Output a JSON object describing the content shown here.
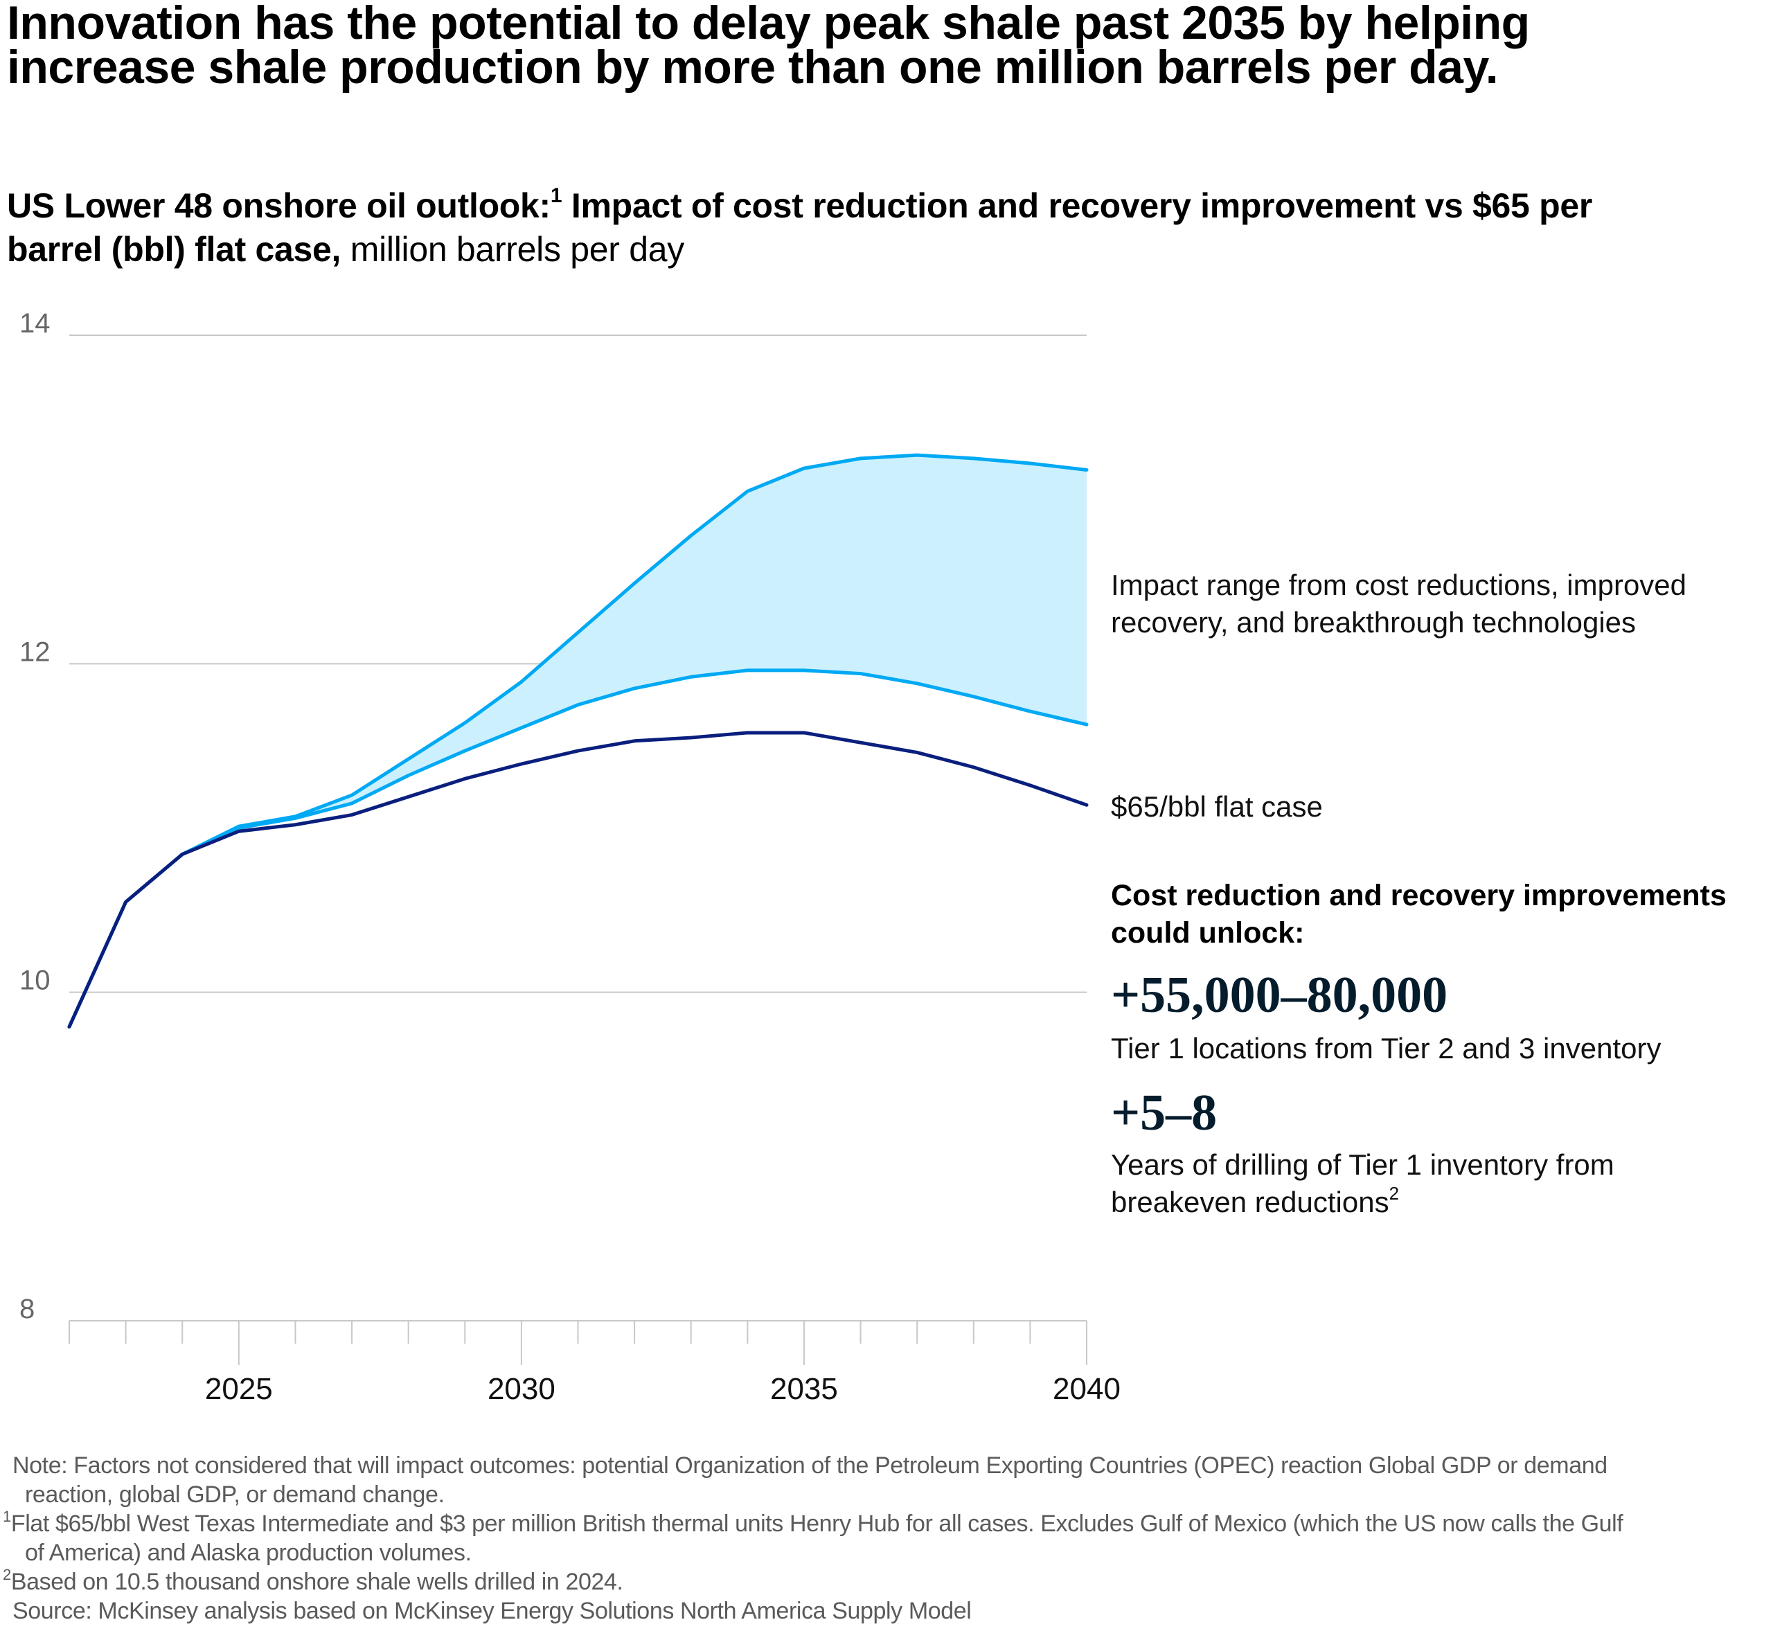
{
  "title": {
    "line1": "Innovation has the potential to delay peak shale past 2035 by helping",
    "line2": "increase shale production by more than one million barrels per day."
  },
  "subtitle": {
    "bold_part1": "US Lower 48 onshore oil outlook:",
    "footnote_ref": "1",
    "bold_part2": " Impact of cost reduction and recovery improvement vs $65 per",
    "bold_part3": "barrel (bbl) flat case,",
    "unit": " million barrels per day"
  },
  "annotations": {
    "impact_range_line1": "Impact range from cost reductions, improved",
    "impact_range_line2": "recovery, and breakthrough technologies",
    "flat_case_label": "$65/bbl flat case",
    "unlock_heading_line1": "Cost reduction and recovery improvements",
    "unlock_heading_line2": "could unlock:",
    "stat1_value": "+55,000–80,000",
    "stat1_desc": "Tier 1 locations from Tier 2 and 3 inventory",
    "stat2_value": "+5–8",
    "stat2_desc_line1": "Years of drilling of Tier 1 inventory from",
    "stat2_desc_line2": "breakeven reductions",
    "stat2_footnote_ref": "2"
  },
  "footnotes": {
    "note_line1": "Note: Factors not considered that will impact outcomes: potential Organization of the Petroleum Exporting Countries (OPEC) reaction Global GDP or demand",
    "note_line2": "reaction, global GDP, or demand change.",
    "fn1_ref": "1",
    "fn1_line1": "Flat $65/bbl West Texas Intermediate and $3 per million British thermal units Henry Hub for all cases. Excludes Gulf of Mexico (which the US now calls the Gulf",
    "fn1_line2": "of America) and Alaska production volumes.",
    "fn2_ref": "2",
    "fn2_line1": "Based on 10.5 thousand onshore shale wells drilled in 2024.",
    "source": "Source: McKinsey analysis based on McKinsey Energy Solutions North America Supply Model"
  },
  "colors": {
    "flat_case": "#0a1f7d",
    "range_lines": "#00a9f4",
    "range_fill": "#ccf0fe",
    "grid": "#c8c8c8",
    "big_number": "#051c2c"
  },
  "chart_data": {
    "type": "line",
    "title": "US Lower 48 onshore oil outlook: Impact of cost reduction and recovery improvement vs $65 per barrel (bbl) flat case",
    "xlabel": "",
    "ylabel": "million barrels per day",
    "xlim": [
      2022,
      2040
    ],
    "ylim": [
      8,
      14
    ],
    "yticks": [
      8,
      10,
      12,
      14
    ],
    "xtick_labels": [
      "2025",
      "2030",
      "2035",
      "2040"
    ],
    "xticks_minor_every": 1,
    "grid": true,
    "x": [
      2022,
      2023,
      2024,
      2025,
      2026,
      2027,
      2028,
      2029,
      2030,
      2031,
      2032,
      2033,
      2034,
      2035,
      2036,
      2037,
      2038,
      2039,
      2040
    ],
    "series": [
      {
        "name": "$65/bbl flat case",
        "values": [
          9.79,
          10.55,
          10.84,
          10.98,
          11.02,
          11.08,
          11.19,
          11.3,
          11.39,
          11.47,
          11.53,
          11.55,
          11.58,
          11.58,
          11.52,
          11.46,
          11.37,
          11.26,
          11.14
        ]
      },
      {
        "name": "Impact range low",
        "values": [
          9.79,
          10.55,
          10.84,
          11.0,
          11.06,
          11.15,
          11.32,
          11.47,
          11.61,
          11.75,
          11.85,
          11.92,
          11.96,
          11.96,
          11.94,
          11.88,
          11.8,
          11.71,
          11.63
        ]
      },
      {
        "name": "Impact range high",
        "values": [
          9.79,
          10.55,
          10.84,
          11.01,
          11.07,
          11.2,
          11.42,
          11.64,
          11.89,
          12.19,
          12.49,
          12.78,
          13.05,
          13.19,
          13.25,
          13.27,
          13.25,
          13.22,
          13.18
        ]
      }
    ],
    "band": {
      "name": "Impact range from cost reductions, improved recovery, and breakthrough technologies",
      "lower_series": "Impact range low",
      "upper_series": "Impact range high"
    }
  }
}
